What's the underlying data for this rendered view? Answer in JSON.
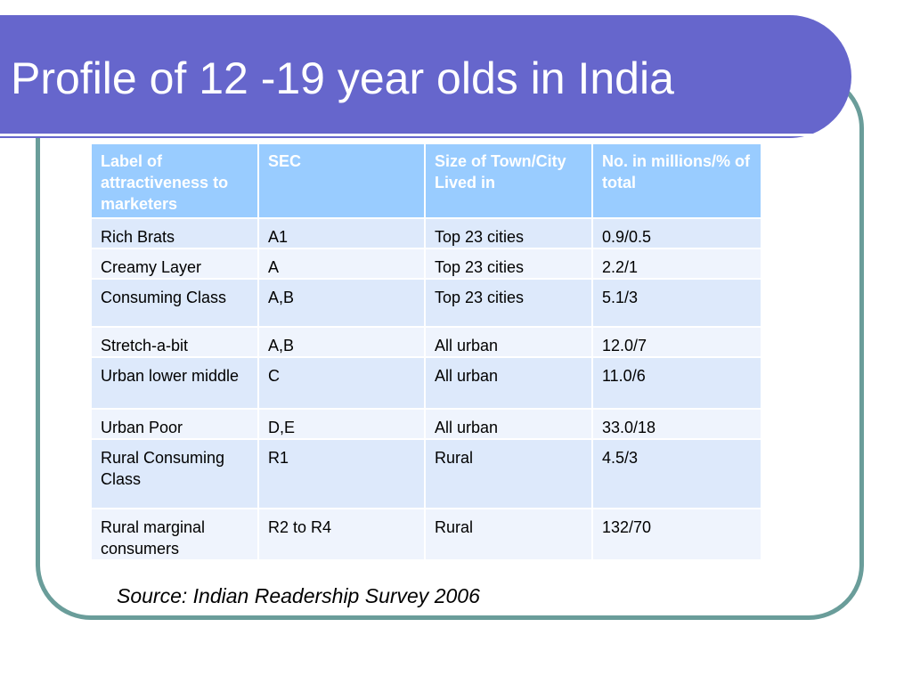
{
  "slide": {
    "title": "Profile of 12 -19 year olds in India",
    "source": "Source: Indian Readership Survey 2006"
  },
  "table": {
    "headers": [
      "Label of attractiveness to marketers",
      "SEC",
      "Size of Town/City Lived in",
      "No. in millions/% of total"
    ],
    "rows": [
      [
        "Rich Brats",
        "A1",
        "Top 23 cities",
        "0.9/0.5"
      ],
      [
        "Creamy Layer",
        "A",
        "Top 23 cities",
        "2.2/1"
      ],
      [
        "Consuming Class",
        "A,B",
        "Top 23 cities",
        "5.1/3"
      ],
      [
        "Stretch-a-bit",
        "A,B",
        "All urban",
        "12.0/7"
      ],
      [
        "Urban lower middle",
        "C",
        "All urban",
        "11.0/6"
      ],
      [
        "Urban Poor",
        "D,E",
        "All urban",
        "33.0/18"
      ],
      [
        "Rural Consuming Class",
        "R1",
        "Rural",
        "4.5/3"
      ],
      [
        "Rural marginal consumers",
        "R2 to R4",
        "Rural",
        "132/70"
      ]
    ]
  },
  "colors": {
    "title_bar": "#6666cc",
    "frame_border": "#6a9d9a",
    "header_fill": "#99ccff",
    "row_fill_dark": "#dde9fb",
    "row_fill_light": "#eff4fd"
  }
}
